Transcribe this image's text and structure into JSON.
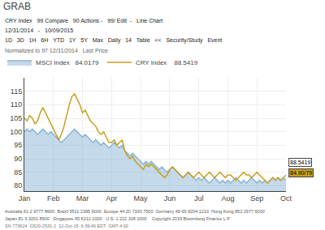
{
  "chart_data": {
    "type": "line",
    "title": "GRAB",
    "categories": [
      "Jan",
      null,
      null,
      null,
      null,
      null,
      null,
      null,
      null,
      null,
      null,
      "Feb",
      null,
      null,
      null,
      null,
      null,
      null,
      null,
      null,
      null,
      null,
      "Mar",
      null,
      null,
      null,
      null,
      null,
      null,
      null,
      null,
      null,
      null,
      "Apr",
      null,
      null,
      null,
      null,
      null,
      null,
      null,
      null,
      null,
      null,
      "May",
      null,
      null,
      null,
      null,
      null,
      null,
      null,
      null,
      null,
      null,
      "Jun",
      null,
      null,
      null,
      null,
      null,
      null,
      null,
      null,
      null,
      null,
      "Jul",
      null,
      null,
      null,
      null,
      null,
      null,
      null,
      null,
      null,
      null,
      "Aug",
      null,
      null,
      null,
      null,
      null,
      null,
      null,
      null,
      null,
      null,
      "Sep",
      null,
      null,
      null,
      null,
      null,
      null,
      null,
      null,
      null,
      null,
      "Oct"
    ],
    "series": [
      {
        "name": "MSCI Index   84.0179",
        "color": "#8ab4d4",
        "type": "area",
        "values": [
          100,
          101,
          100,
          101,
          100,
          99,
          100,
          101,
          100,
          99,
          100,
          99,
          98,
          97,
          96,
          97,
          98,
          99,
          100,
          101,
          100,
          99,
          98,
          99,
          98,
          97,
          96,
          97,
          96,
          95,
          96,
          95,
          94,
          95,
          96,
          95,
          94,
          95,
          93,
          92,
          91,
          92,
          91,
          90,
          89,
          88,
          89,
          88,
          89,
          88,
          87,
          86,
          87,
          86,
          85,
          86,
          87,
          86,
          85,
          84,
          83,
          84,
          85,
          84,
          83,
          82,
          83,
          82,
          83,
          82,
          81,
          82,
          83,
          82,
          81,
          82,
          81,
          82,
          81,
          82,
          83,
          82,
          81,
          82,
          81,
          82,
          83,
          82,
          81,
          82,
          81,
          82,
          81,
          82,
          83,
          82,
          83,
          82,
          83,
          82
        ]
      },
      {
        "name": "CRY Index    88.5419",
        "color": "#c8a020",
        "type": "line",
        "values": [
          105,
          104,
          106,
          105,
          103,
          104,
          107,
          109,
          107,
          105,
          103,
          101,
          99,
          97,
          99,
          102,
          106,
          110,
          113,
          114,
          112,
          110,
          107,
          108,
          106,
          104,
          103,
          102,
          100,
          99,
          100,
          98,
          96,
          96,
          97,
          95,
          96,
          97,
          93,
          91,
          90,
          91,
          89,
          88,
          87,
          86,
          88,
          87,
          88,
          87,
          86,
          85,
          84,
          83,
          84,
          86,
          87,
          86,
          85,
          84,
          83,
          84,
          85,
          84,
          83,
          84,
          85,
          84,
          83,
          84,
          85,
          84,
          83,
          84,
          85,
          84,
          83,
          84,
          84,
          83,
          82,
          83,
          84,
          85,
          84,
          84,
          83,
          84,
          85,
          84,
          83,
          82,
          81,
          82,
          83,
          82,
          83,
          82,
          83,
          84
        ]
      }
    ],
    "ylim": [
      78,
      120
    ],
    "yticks": [
      80,
      85,
      90,
      95,
      100,
      105,
      110,
      115
    ],
    "grid": true,
    "legend": "top",
    "annotations": [
      [
        "CRY Index",
        "99 Compare",
        "90 Actions -",
        "99/ Edit  -",
        "Line Chart"
      ],
      [
        "12/31/2014",
        "-",
        "10/09/2015"
      ],
      [
        "1D",
        "3D",
        "1H",
        "6H",
        "YTD",
        "1Y",
        "5Y",
        "Max",
        "Daily",
        "14",
        "Table",
        "<<",
        "Security/Study",
        "Event"
      ],
      [
        "Normalized to 97 12/31/2014",
        "Last Price"
      ],
      [
        "Australia 61 2 9777 8600  Brazil 5511 2395 9000  Europe 44 20 7330 7500  Germany 49 69 9204 1210  Hong Kong 852 2977 6000"
      ],
      [
        "Japan 81 3 3201 8900   Singapore 65 6212 1000   U.S. 1 212 318 2000    Copyright 2015 Bloomberg Finance L.P."
      ],
      [
        "SN 773624  G520-2531-2  12-Oct-15  6:39:49 EDT  GMT-4:00"
      ],
      {
        "text": "84.90/79",
        "y": 84.9,
        "color": "#c8a020"
      },
      {
        "text": "88.5419",
        "y": 88.5419,
        "color": "#ffffff"
      }
    ]
  }
}
